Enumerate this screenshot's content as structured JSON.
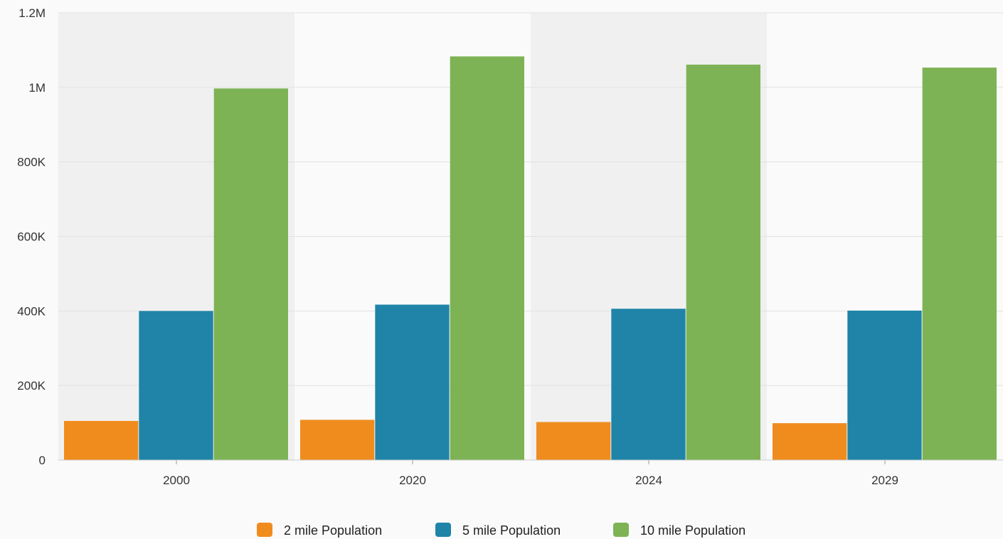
{
  "chart_data": {
    "type": "bar",
    "categories": [
      "2000",
      "2020",
      "2024",
      "2029"
    ],
    "series": [
      {
        "name": "2 mile Population",
        "color": "#f08c1e",
        "values": [
          105000,
          108000,
          102000,
          99000
        ]
      },
      {
        "name": "5 mile Population",
        "color": "#1f84a8",
        "values": [
          400000,
          417000,
          406000,
          401000
        ]
      },
      {
        "name": "10 mile Population",
        "color": "#7db354",
        "values": [
          997000,
          1083000,
          1061000,
          1053000
        ]
      }
    ],
    "title": "",
    "xlabel": "",
    "ylabel": "",
    "ylim": [
      0,
      1200000
    ],
    "yticks": [
      {
        "value": 0,
        "label": "0"
      },
      {
        "value": 200000,
        "label": "200K"
      },
      {
        "value": 400000,
        "label": "400K"
      },
      {
        "value": 600000,
        "label": "600K"
      },
      {
        "value": 800000,
        "label": "800K"
      },
      {
        "value": 1000000,
        "label": "1M"
      },
      {
        "value": 1200000,
        "label": "1.2M"
      }
    ],
    "grid": true,
    "alternating_bands": true,
    "band_color": "#f0f0f0",
    "grid_color": "#e2e2e2",
    "legend_position": "bottom-center"
  }
}
